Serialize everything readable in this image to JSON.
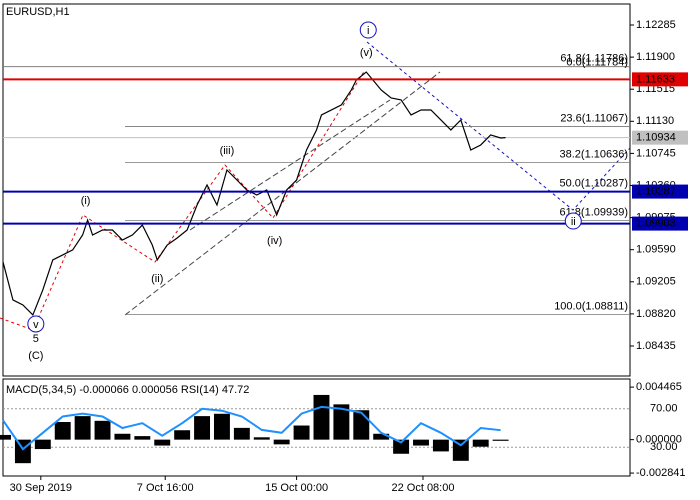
{
  "chart_data": [
    {
      "type": "line",
      "title": "EURUSD,H1",
      "x": [
        0,
        2,
        4,
        6,
        8,
        10,
        12,
        14,
        16,
        17,
        18,
        20,
        22,
        24,
        26,
        28,
        30,
        31,
        33,
        35,
        37,
        39,
        41,
        43,
        45,
        47,
        49,
        51,
        53,
        55,
        57,
        59,
        61,
        63,
        64,
        66,
        68,
        70,
        71,
        73,
        74,
        76,
        78,
        80,
        82,
        84,
        86,
        88,
        90,
        92,
        94,
        96,
        98,
        100,
        101
      ],
      "series": [
        {
          "color": "#000000",
          "values": [
            1.09443,
            1.08987,
            1.08927,
            1.08807,
            1.09107,
            1.09467,
            1.09527,
            1.09587,
            1.09766,
            1.09946,
            1.09766,
            1.09826,
            1.09826,
            1.09706,
            1.09766,
            1.09886,
            1.09646,
            1.09467,
            1.09646,
            1.0973,
            1.09826,
            1.10126,
            1.10366,
            1.10126,
            1.10546,
            1.10426,
            1.10306,
            1.10246,
            1.10306,
            1.10006,
            1.10306,
            1.10426,
            1.10786,
            1.11026,
            1.11206,
            1.11266,
            1.11326,
            1.11506,
            1.11625,
            1.11721,
            1.11649,
            1.11506,
            1.1141,
            1.11386,
            1.11206,
            1.11266,
            1.11266,
            1.11146,
            1.11026,
            1.11146,
            1.10786,
            1.10846,
            1.10966,
            1.1093,
            1.10934
          ]
        }
      ],
      "xlim": [
        0,
        126
      ],
      "xticks": [
        {
          "value": 7.6,
          "label": "30 Sep 2019"
        },
        {
          "value": 32.6,
          "label": "7 Oct 16:00"
        },
        {
          "value": 59,
          "label": "15 Oct 00:00"
        },
        {
          "value": 84.4,
          "label": "22 Oct 08:00"
        }
      ],
      "ylim": [
        1.08087,
        1.12525
      ],
      "yticks": [
        1.12285,
        {
          "value": 1.119,
          "label": "1.11900"
        },
        1.11515,
        {
          "value": 1.1113,
          "label": "1.11130"
        },
        1.10745,
        {
          "value": 1.1036,
          "label": "1.10360"
        },
        1.09975,
        {
          "value": 1.0959,
          "label": "1.09590"
        },
        1.09205,
        {
          "value": 1.0882,
          "label": "1.08820"
        },
        1.08435
      ],
      "hlines": [
        {
          "value": 1.11633,
          "color": "#e00000"
        },
        {
          "value": 1.10287,
          "color": "#0000b0"
        },
        {
          "value": 1.09903,
          "color": "#0000b0"
        }
      ],
      "last_price": 1.10934,
      "fib_levels": [
        {
          "value": 1.11786,
          "label": "61.8(1.11786)"
        },
        {
          "value": 1.11784,
          "label": "0.0(1.11784)"
        },
        {
          "value": 1.11067,
          "label": "23.6(1.11067)"
        },
        {
          "value": 1.10636,
          "label": "38.2(1.10636)"
        },
        {
          "value": 1.10287,
          "label": "50.0(1.10287)"
        },
        {
          "value": 1.09939,
          "label": "61.8(1.09939)"
        },
        {
          "value": 1.08811,
          "label": "100.0(1.08811)"
        }
      ],
      "waves": [
        {
          "text": "i",
          "x": 73.4,
          "price": 1.12225,
          "color": "#1010c0",
          "circled": true
        },
        {
          "text": "(v)",
          "x": 73,
          "price": 1.11961,
          "color": "#e00000",
          "circled": false
        },
        {
          "text": "(iii)",
          "x": 45,
          "price": 1.10786,
          "color": "#e00000",
          "circled": false
        },
        {
          "text": "(i)",
          "x": 16.6,
          "price": 1.10186,
          "color": "#e00000",
          "circled": false
        },
        {
          "text": "(iv)",
          "x": 54.6,
          "price": 1.09706,
          "color": "#e00000",
          "circled": false
        },
        {
          "text": "(ii)",
          "x": 31,
          "price": 1.0925,
          "color": "#e00000",
          "circled": false
        },
        {
          "text": "v",
          "x": 6.6,
          "price": 1.08699,
          "color": "#1010c0",
          "circled": true
        },
        {
          "text": "5",
          "x": 6.6,
          "price": 1.08531,
          "color": "#8b1a1a",
          "circled": false
        },
        {
          "text": "(C)",
          "x": 6.6,
          "price": 1.08327,
          "color": "#2e8b2e",
          "circled": false
        },
        {
          "text": "ii",
          "x": 114.6,
          "price": 1.09934,
          "color": "#1010c0",
          "circled": true
        }
      ]
    },
    {
      "type": "macd",
      "title": "MACD(5,34,5) -0.000066 0.000056 RSI(14) 47.72",
      "x": [
        0,
        4,
        8,
        12,
        16,
        20,
        24,
        28,
        32,
        36,
        40,
        44,
        48,
        52,
        56,
        60,
        64,
        68,
        72,
        76,
        80,
        84,
        88,
        92,
        96,
        100
      ],
      "series": [
        {
          "type": "bar",
          "color": "#000000",
          "values": [
            0.0004,
            -0.002,
            -0.0008,
            0.0015,
            0.002,
            0.0016,
            0.0005,
            0.0003,
            -0.0005,
            0.0008,
            0.002,
            0.0022,
            0.001,
            0.0002,
            -0.0004,
            0.0012,
            0.0038,
            0.003,
            0.0025,
            0.0005,
            -0.0012,
            -0.0005,
            -0.001,
            -0.0018,
            -0.0006,
            -0.0001
          ]
        },
        {
          "type": "line",
          "axis": "y2",
          "color": "#1e90ff",
          "values": [
            58,
            28,
            45,
            62,
            65,
            62,
            50,
            55,
            42,
            55,
            70,
            68,
            62,
            48,
            45,
            65,
            72,
            70,
            66,
            45,
            35,
            55,
            45,
            32,
            50,
            47.72
          ]
        }
      ],
      "xlim": [
        0,
        126
      ],
      "ylim": [
        -0.00309,
        0.00507
      ],
      "yticks": [
        0.004465,
        {
          "value": 0,
          "label": "0.000000"
        },
        -0.002841
      ],
      "y2lim": [
        0,
        100
      ],
      "y2ticks": [
        {
          "value": 70,
          "label": "70.00"
        },
        {
          "value": 30,
          "label": "30.00"
        }
      ]
    }
  ]
}
